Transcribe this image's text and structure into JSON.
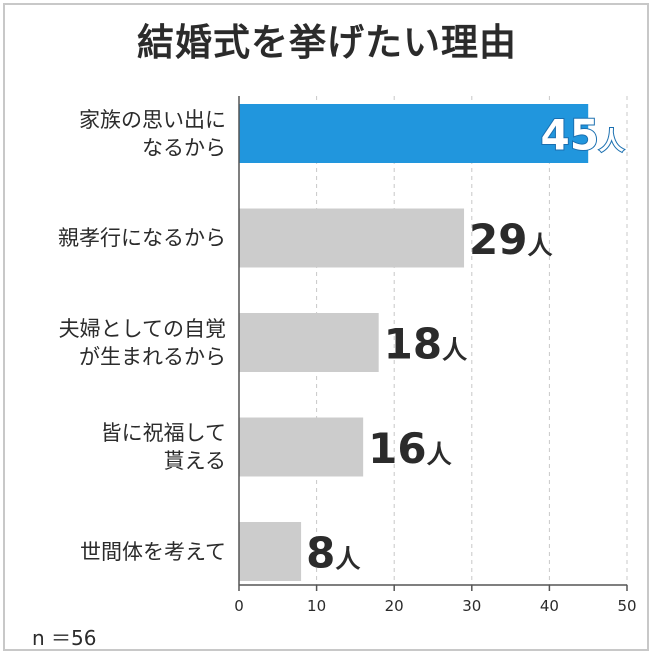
{
  "title": "結婚式を挙げたい理由",
  "sample_note": "n ＝56",
  "colors": {
    "highlight": "#2196dd",
    "bar": "#cccccc",
    "axis": "#555555",
    "grid": "#c8c8c8",
    "text": "#2b2b2b"
  },
  "chart_data": {
    "type": "bar",
    "orientation": "horizontal",
    "categories": [
      "家族の思い出に\nなるから",
      "親孝行になるから",
      "夫婦としての自覚\nが生まれるから",
      "皆に祝福して\n貰える",
      "世間体を考えて"
    ],
    "values": [
      45,
      29,
      18,
      16,
      8
    ],
    "value_labels": [
      "45",
      "29",
      "18",
      "16",
      "8"
    ],
    "unit": "人",
    "highlight_index": 0,
    "xlim": [
      0,
      50
    ],
    "xticks": [
      0,
      10,
      20,
      30,
      40,
      50
    ],
    "grid": "vertical dashed"
  }
}
